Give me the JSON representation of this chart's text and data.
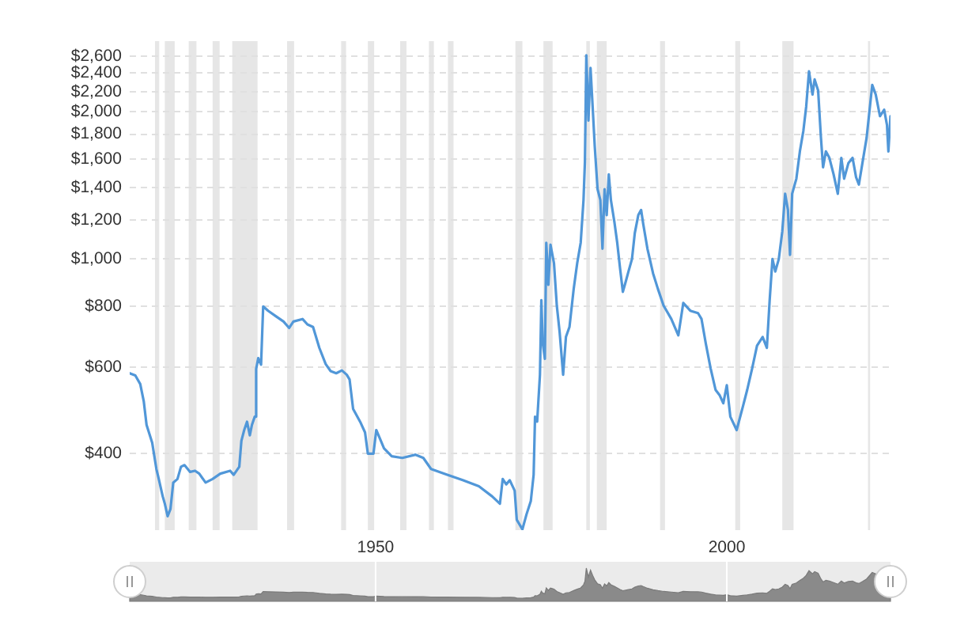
{
  "chart_data": {
    "type": "line",
    "x": [
      1915.0,
      1915.8,
      1916.5,
      1917.0,
      1917.4,
      1918.2,
      1918.8,
      1919.1,
      1919.7,
      1920.0,
      1920.4,
      1920.8,
      1921.2,
      1921.8,
      1922.3,
      1922.8,
      1923.6,
      1924.3,
      1924.9,
      1925.8,
      1926.8,
      1927.9,
      1929.3,
      1929.8,
      1930.6,
      1930.9,
      1931.3,
      1931.7,
      1932.1,
      1932.4,
      1932.8,
      1933.0,
      1933.3,
      1933.7,
      1934.0,
      1934.7,
      1935.8,
      1936.9,
      1937.7,
      1938.3,
      1939.6,
      1940.3,
      1941.1,
      1942.0,
      1942.9,
      1943.6,
      1944.4,
      1945.2,
      1945.9,
      1946.3,
      1946.8,
      1947.8,
      1948.5,
      1948.9,
      1949.7,
      1950.1,
      1950.6,
      1951.2,
      1952.3,
      1953.8,
      1955.7,
      1956.8,
      1957.9,
      1960.2,
      1962.4,
      1964.7,
      1966.6,
      1967.7,
      1968.1,
      1968.6,
      1969.1,
      1969.8,
      1970.1,
      1970.9,
      1971.5,
      1972.1,
      1972.5,
      1972.7,
      1973.0,
      1973.4,
      1973.6,
      1973.8,
      1974.1,
      1974.3,
      1974.6,
      1974.9,
      1975.4,
      1975.8,
      1976.2,
      1976.7,
      1977.1,
      1977.6,
      1978.2,
      1978.7,
      1979.2,
      1979.6,
      1979.8,
      1980.0,
      1980.3,
      1980.6,
      1980.9,
      1981.2,
      1981.6,
      1982.0,
      1982.3,
      1982.6,
      1982.9,
      1983.2,
      1983.5,
      1984.0,
      1984.4,
      1984.8,
      1985.2,
      1985.6,
      1986.0,
      1986.5,
      1986.9,
      1987.4,
      1987.8,
      1988.1,
      1988.7,
      1989.5,
      1990.2,
      1991.0,
      1992.1,
      1993.1,
      1993.8,
      1994.8,
      1995.9,
      1996.4,
      1997.0,
      1997.7,
      1998.4,
      1999.0,
      1999.5,
      2000.0,
      2000.5,
      2001.4,
      2002.3,
      2002.9,
      2003.6,
      2004.3,
      2005.1,
      2005.7,
      2006.1,
      2006.5,
      2006.9,
      2007.4,
      2007.9,
      2008.3,
      2008.7,
      2009.0,
      2009.3,
      2009.9,
      2010.4,
      2010.9,
      2011.3,
      2011.7,
      2012.2,
      2012.5,
      2013.0,
      2013.4,
      2013.7,
      2014.1,
      2014.6,
      2015.2,
      2015.8,
      2016.3,
      2016.7,
      2017.3,
      2017.9,
      2018.4,
      2018.8,
      2019.3,
      2019.9,
      2020.7,
      2021.2,
      2021.8,
      2022.4,
      2022.8,
      2023.0,
      2023.3
    ],
    "values": [
      584,
      578,
      555,
      512,
      458,
      421,
      372,
      357,
      327,
      316,
      298,
      308,
      349,
      355,
      376,
      379,
      367,
      369,
      364,
      349,
      355,
      364,
      369,
      362,
      376,
      425,
      447,
      465,
      436,
      458,
      476,
      596,
      627,
      608,
      800,
      784,
      764,
      745,
      723,
      745,
      754,
      735,
      726,
      658,
      610,
      590,
      584,
      592,
      580,
      567,
      494,
      465,
      442,
      400,
      400,
      447,
      430,
      410,
      395,
      392,
      398,
      392,
      372,
      362,
      353,
      343,
      327,
      316,
      355,
      346,
      353,
      336,
      293,
      280,
      301,
      320,
      362,
      476,
      465,
      580,
      824,
      673,
      625,
      1080,
      886,
      1070,
      980,
      803,
      709,
      580,
      693,
      726,
      868,
      980,
      1080,
      1320,
      1580,
      2610,
      1920,
      2460,
      2050,
      1700,
      1390,
      1320,
      1050,
      1390,
      1230,
      1490,
      1320,
      1190,
      1080,
      958,
      857,
      898,
      943,
      1000,
      1130,
      1230,
      1260,
      1180,
      1050,
      935,
      868,
      803,
      754,
      698,
      813,
      784,
      775,
      754,
      673,
      597,
      540,
      526,
      507,
      552,
      476,
      447,
      500,
      540,
      597,
      665,
      693,
      658,
      824,
      1000,
      943,
      1000,
      1140,
      1360,
      1260,
      1020,
      1360,
      1460,
      1660,
      1830,
      2050,
      2420,
      2170,
      2330,
      2210,
      1770,
      1540,
      1660,
      1610,
      1490,
      1360,
      1610,
      1460,
      1570,
      1610,
      1470,
      1420,
      1570,
      1770,
      2270,
      2170,
      1960,
      2020,
      1880,
      1660,
      1960
    ],
    "color": "#5197d8",
    "marker": "none",
    "xlim": [
      1915,
      2023.3
    ],
    "xticks": [
      1950,
      2000
    ],
    "ylim": [
      279,
      2790
    ],
    "yticks": [
      {
        "value": 400,
        "label": "$400"
      },
      {
        "value": 600,
        "label": "$600"
      },
      {
        "value": 800,
        "label": "$800"
      },
      {
        "value": 1000,
        "label": "$1,000"
      },
      {
        "value": 1200,
        "label": "$1,200"
      },
      {
        "value": 1400,
        "label": "$1,400"
      },
      {
        "value": 1600,
        "label": "$1,600"
      },
      {
        "value": 1800,
        "label": "$1,800"
      },
      {
        "value": 2000,
        "label": "$2,000"
      },
      {
        "value": 2200,
        "label": "$2,200"
      },
      {
        "value": 2400,
        "label": "$2,400"
      },
      {
        "value": 2600,
        "label": "$2,600"
      }
    ],
    "log": true,
    "grid": "y",
    "bands": [
      {
        "axis": "x",
        "from": 1918.6,
        "to": 1919.2,
        "color": "#e6e6e6"
      },
      {
        "axis": "x",
        "from": 1920.0,
        "to": 1921.4,
        "color": "#e6e6e6"
      },
      {
        "axis": "x",
        "from": 1923.4,
        "to": 1924.5,
        "color": "#e6e6e6"
      },
      {
        "axis": "x",
        "from": 1926.8,
        "to": 1927.8,
        "color": "#e6e6e6"
      },
      {
        "axis": "x",
        "from": 1929.6,
        "to": 1933.2,
        "color": "#e6e6e6"
      },
      {
        "axis": "x",
        "from": 1937.4,
        "to": 1938.4,
        "color": "#e6e6e6"
      },
      {
        "axis": "x",
        "from": 1945.1,
        "to": 1945.8,
        "color": "#e6e6e6"
      },
      {
        "axis": "x",
        "from": 1948.9,
        "to": 1949.8,
        "color": "#e6e6e6"
      },
      {
        "axis": "x",
        "from": 1953.5,
        "to": 1954.4,
        "color": "#e6e6e6"
      },
      {
        "axis": "x",
        "from": 1957.6,
        "to": 1958.3,
        "color": "#e6e6e6"
      },
      {
        "axis": "x",
        "from": 1960.3,
        "to": 1961.1,
        "color": "#e6e6e6"
      },
      {
        "axis": "x",
        "from": 1969.9,
        "to": 1970.9,
        "color": "#e6e6e6"
      },
      {
        "axis": "x",
        "from": 1973.9,
        "to": 1975.2,
        "color": "#e6e6e6"
      },
      {
        "axis": "x",
        "from": 1980.0,
        "to": 1980.5,
        "color": "#e6e6e6"
      },
      {
        "axis": "x",
        "from": 1981.5,
        "to": 1982.9,
        "color": "#e6e6e6"
      },
      {
        "axis": "x",
        "from": 1990.5,
        "to": 1991.2,
        "color": "#e6e6e6"
      },
      {
        "axis": "x",
        "from": 2001.2,
        "to": 2001.9,
        "color": "#e6e6e6"
      },
      {
        "axis": "x",
        "from": 2007.9,
        "to": 2009.5,
        "color": "#e6e6e6"
      },
      {
        "axis": "x",
        "from": 2020.1,
        "to": 2020.4,
        "color": "#e6e6e6"
      }
    ]
  }
}
